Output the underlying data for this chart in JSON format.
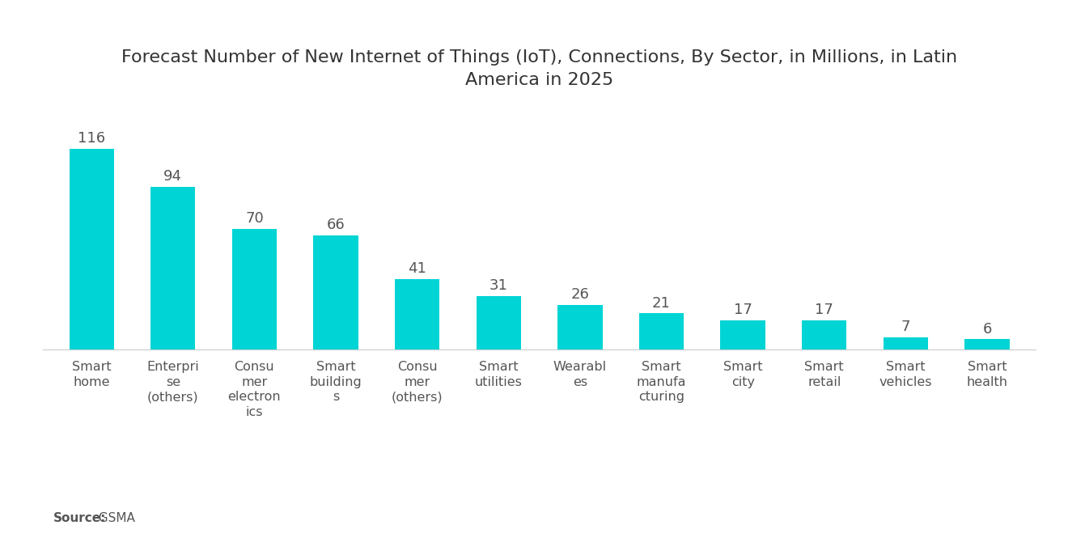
{
  "title": "Forecast Number of New Internet of Things (IoT), Connections, By Sector, in Millions, in Latin\nAmerica in 2025",
  "categories": [
    "Smart\nhome",
    "Enterpri\nse\n(others)",
    "Consu\nmer\nelectron\nics",
    "Smart\nbuilding\ns",
    "Consu\nmer\n(others)",
    "Smart\nutilities",
    "Wearabl\nes",
    "Smart\nmanufa\ncturing",
    "Smart\ncity",
    "Smart\nretail",
    "Smart\nvehicles",
    "Smart\nhealth"
  ],
  "values": [
    116,
    94,
    70,
    66,
    41,
    31,
    26,
    21,
    17,
    17,
    7,
    6
  ],
  "bar_color": "#00D4D4",
  "background_color": "#ffffff",
  "source_label": "Source:",
  "source_value": "  GSMA",
  "title_fontsize": 16,
  "label_fontsize": 11.5,
  "value_fontsize": 13,
  "source_fontsize": 11,
  "ylim": [
    0,
    140
  ]
}
